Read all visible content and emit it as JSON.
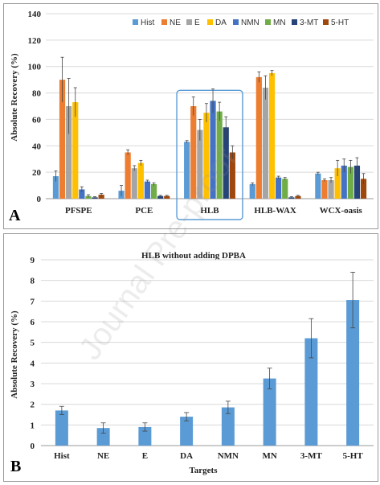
{
  "panelA": {
    "letter": "A",
    "chart_data": {
      "type": "bar",
      "ylabel": "Absolute Recovery  (%)",
      "ylim": [
        0,
        140
      ],
      "yticks": [
        0,
        20,
        40,
        60,
        80,
        100,
        120,
        140
      ],
      "categories": [
        "PFSPE",
        "PCE",
        "HLB",
        "HLB-WAX",
        "WCX-oasis"
      ],
      "legend_position": "top-right",
      "highlight_category": "HLB",
      "series": [
        {
          "name": "Hist",
          "color": "#5b9bd5",
          "values": [
            17,
            6,
            43,
            11,
            19
          ],
          "errors": [
            4,
            4,
            1,
            1,
            1
          ]
        },
        {
          "name": "NE",
          "color": "#ed7d31",
          "values": [
            90,
            35,
            70,
            92,
            14
          ],
          "errors": [
            17,
            2,
            7,
            4,
            1
          ]
        },
        {
          "name": "E",
          "color": "#a5a5a5",
          "values": [
            70,
            23,
            52,
            84,
            14
          ],
          "errors": [
            21,
            2,
            8,
            9,
            2
          ]
        },
        {
          "name": "DA",
          "color": "#ffc000",
          "values": [
            73,
            27,
            65,
            95,
            23
          ],
          "errors": [
            11,
            2,
            7,
            2,
            6
          ]
        },
        {
          "name": "NMN",
          "color": "#4472c4",
          "values": [
            7,
            13,
            74,
            16,
            25
          ],
          "errors": [
            2,
            1,
            9,
            1,
            5
          ]
        },
        {
          "name": "MN",
          "color": "#70ad47",
          "values": [
            2,
            11,
            66,
            15,
            24
          ],
          "errors": [
            1,
            1,
            7,
            1,
            5
          ]
        },
        {
          "name": "3-MT",
          "color": "#264478",
          "values": [
            1,
            2,
            54,
            1,
            25
          ],
          "errors": [
            0.5,
            0.5,
            8,
            0.5,
            6
          ]
        },
        {
          "name": "5-HT",
          "color": "#9e480e",
          "values": [
            3,
            2,
            35,
            2,
            15
          ],
          "errors": [
            1,
            0.5,
            5,
            0.5,
            4
          ]
        }
      ]
    }
  },
  "panelB": {
    "letter": "B",
    "chart_data": {
      "type": "bar",
      "title": "HLB without  adding DPBA",
      "xlabel": "Targets",
      "ylabel": "Absolute Recovery (%)",
      "ylim": [
        0,
        9
      ],
      "yticks": [
        0,
        1,
        2,
        3,
        4,
        5,
        6,
        7,
        8,
        9
      ],
      "categories": [
        "Hist",
        "NE",
        "E",
        "DA",
        "NMN",
        "MN",
        "3-MT",
        "5-HT"
      ],
      "color": "#5b9bd5",
      "values": [
        1.7,
        0.85,
        0.9,
        1.4,
        1.85,
        3.25,
        5.2,
        7.05
      ],
      "errors": [
        0.2,
        0.25,
        0.2,
        0.2,
        0.3,
        0.5,
        0.95,
        1.35
      ]
    }
  },
  "watermark": "Journal Pre-proof"
}
